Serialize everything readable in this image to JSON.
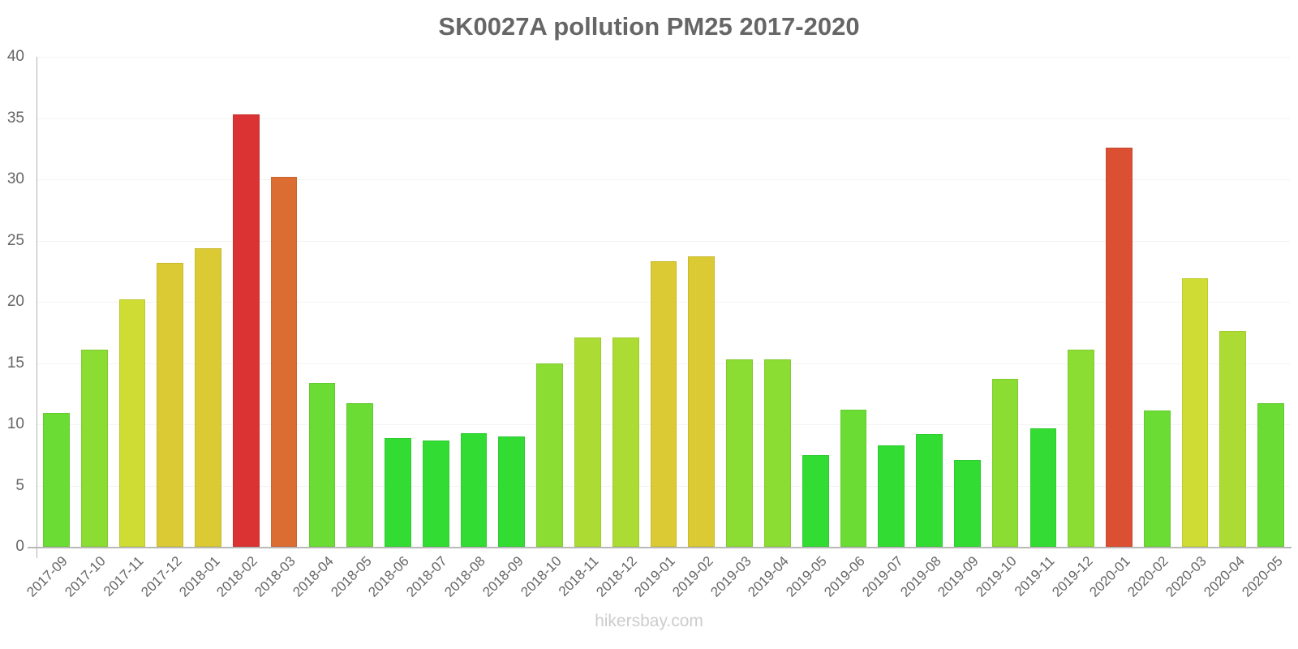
{
  "chart_data": {
    "type": "bar",
    "title": "SK0027A pollution PM25 2017-2020",
    "xlabel": "",
    "ylabel": "",
    "ylim": [
      0,
      40
    ],
    "yticks": [
      0,
      5,
      10,
      15,
      20,
      25,
      30,
      35,
      40
    ],
    "grid": true,
    "legend": null,
    "categories": [
      "2017-09",
      "2017-10",
      "2017-11",
      "2017-12",
      "2018-01",
      "2018-02",
      "2018-03",
      "2018-04",
      "2018-05",
      "2018-06",
      "2018-07",
      "2018-08",
      "2018-09",
      "2018-10",
      "2018-11",
      "2018-12",
      "2019-01",
      "2019-02",
      "2019-03",
      "2019-04",
      "2019-05",
      "2019-06",
      "2019-07",
      "2019-08",
      "2019-09",
      "2019-10",
      "2019-11",
      "2019-12",
      "2020-01",
      "2020-02",
      "2020-03",
      "2020-04",
      "2020-05"
    ],
    "values": [
      10.9,
      16.1,
      20.2,
      23.2,
      24.4,
      35.3,
      30.2,
      13.4,
      11.7,
      8.9,
      8.7,
      9.3,
      9.0,
      15.0,
      17.1,
      17.1,
      23.3,
      23.7,
      15.3,
      15.3,
      7.5,
      11.2,
      8.3,
      9.2,
      7.1,
      13.7,
      9.7,
      16.1,
      32.6,
      11.1,
      21.9,
      17.6,
      11.7
    ],
    "colors": [
      "#6bdc33",
      "#8bdc33",
      "#cfdc33",
      "#dbca33",
      "#dbca33",
      "#db3333",
      "#db6d33",
      "#6bdc33",
      "#6bdc33",
      "#33dc33",
      "#33dc33",
      "#33dc33",
      "#33dc33",
      "#8bdc33",
      "#acdc33",
      "#acdc33",
      "#dbca33",
      "#dbca33",
      "#8bdc33",
      "#8bdc33",
      "#33dc33",
      "#6bdc33",
      "#33dc33",
      "#33dc33",
      "#33dc33",
      "#8bdc33",
      "#33dc33",
      "#8bdc33",
      "#db4f33",
      "#6bdc33",
      "#cfdc33",
      "#acdc33",
      "#6bdc33"
    ]
  },
  "header": {
    "title": "SK0027A pollution PM25 2017-2020"
  },
  "footer": {
    "watermark": "hikersbay.com"
  },
  "axis": {
    "y_tick_labels": [
      "0",
      "5",
      "10",
      "15",
      "20",
      "25",
      "30",
      "35",
      "40"
    ]
  }
}
